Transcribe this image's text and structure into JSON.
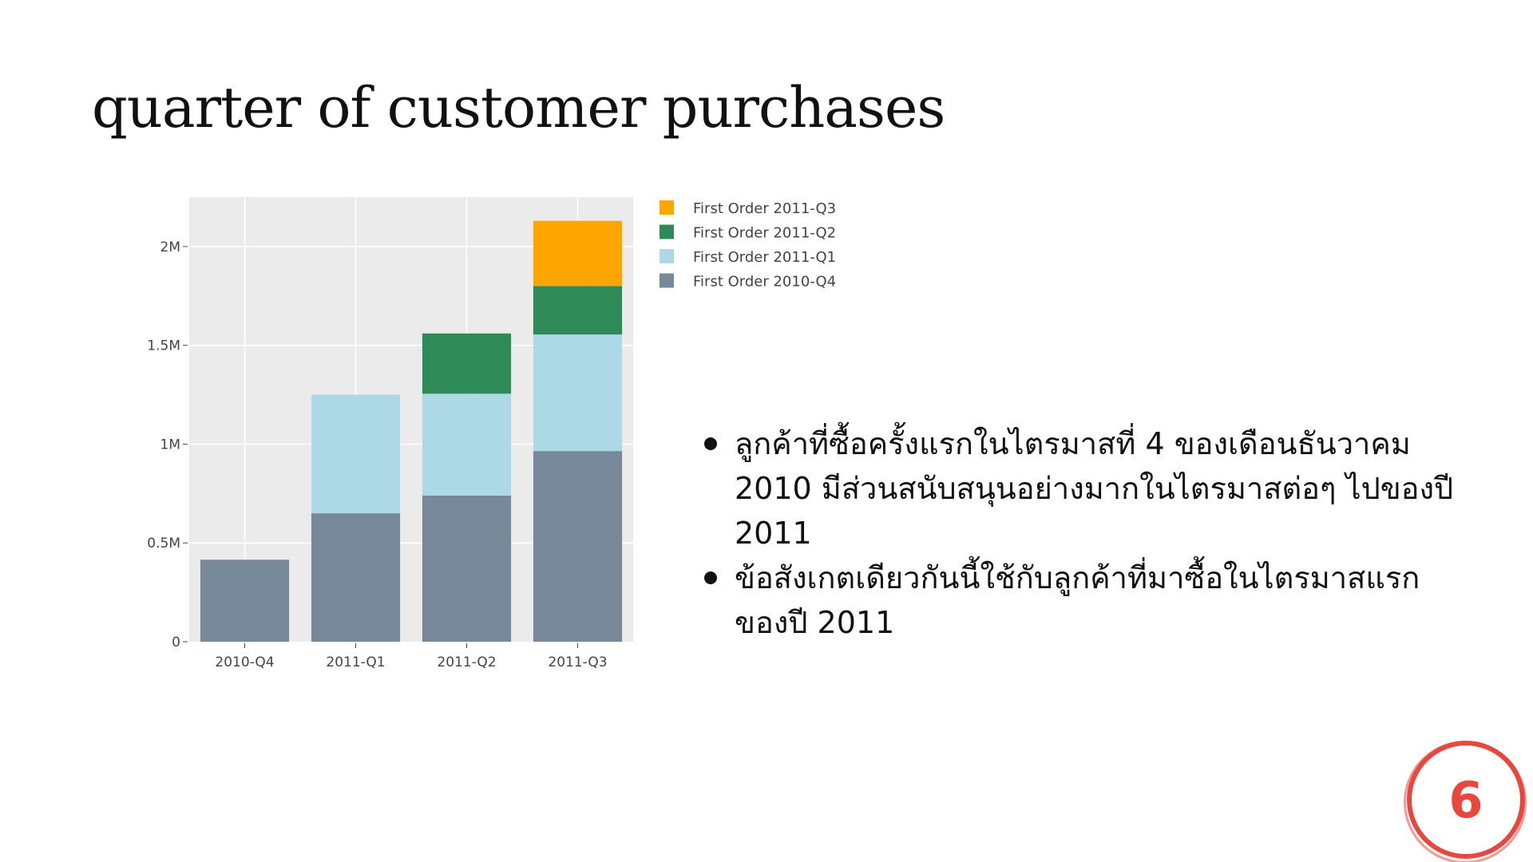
{
  "slide": {
    "title": "quarter of customer purchases",
    "page_number": "6",
    "accent_color": "#e8473e"
  },
  "bullets": [
    "ลูกค้าที่ซื้อครั้งแรกในไตรมาสที่ 4 ของเดือนธันวาคม 2010 มีส่วนสนับสนุนอย่างมากในไตรมาสต่อๆ ไปของปี 2011",
    "ข้อสังเกตเดียวกันนี้ใช้กับลูกค้าที่มาซื้อในไตรมาสแรกของปี 2011"
  ],
  "chart_data": {
    "type": "bar",
    "stacked": true,
    "title": "",
    "xlabel": "",
    "ylabel": "",
    "categories": [
      "2010-Q4",
      "2011-Q1",
      "2011-Q2",
      "2011-Q3"
    ],
    "ylim": [
      0,
      2250000
    ],
    "yticks": [
      0,
      500000,
      1000000,
      1500000,
      2000000
    ],
    "ytick_labels": [
      "0",
      "0.5M",
      "1M",
      "1.5M",
      "2M"
    ],
    "grid": true,
    "plot_background": "#ebebeb",
    "legend_position": "right",
    "series": [
      {
        "name": "First Order 2010-Q4",
        "color": "#778899",
        "values": [
          415000,
          650000,
          740000,
          965000
        ]
      },
      {
        "name": "First Order 2011-Q1",
        "color": "#add8e6",
        "values": [
          0,
          600000,
          515000,
          590000
        ]
      },
      {
        "name": "First Order 2011-Q2",
        "color": "#2e8b57",
        "values": [
          0,
          0,
          305000,
          245000
        ]
      },
      {
        "name": "First Order 2011-Q3",
        "color": "#ffa500",
        "values": [
          0,
          0,
          0,
          330000
        ]
      }
    ]
  }
}
